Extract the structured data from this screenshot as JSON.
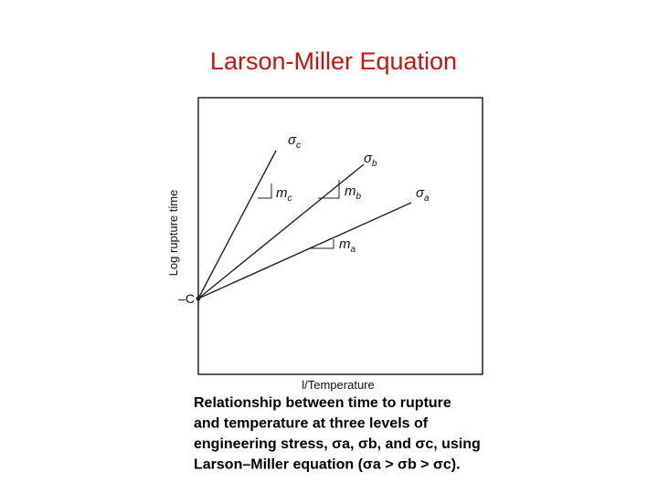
{
  "title": "Larson-Miller Equation",
  "diagram": {
    "y_axis_label": "Log rupture time",
    "x_axis_label": "l/Temperature",
    "origin_label": "–C",
    "lines": [
      {
        "symbol": "σ",
        "sub": "c",
        "slope": "m",
        "slope_sub": "c"
      },
      {
        "symbol": "σ",
        "sub": "b",
        "slope": "m",
        "slope_sub": "b"
      },
      {
        "symbol": "σ",
        "sub": "a",
        "slope": "m",
        "slope_sub": "a"
      }
    ]
  },
  "caption": [
    "Relationship between time to rupture",
    "and temperature at three levels of",
    "engineering stress, σa, σb, and σc, using",
    "Larson–Miller equation (σa > σb > σc)."
  ]
}
